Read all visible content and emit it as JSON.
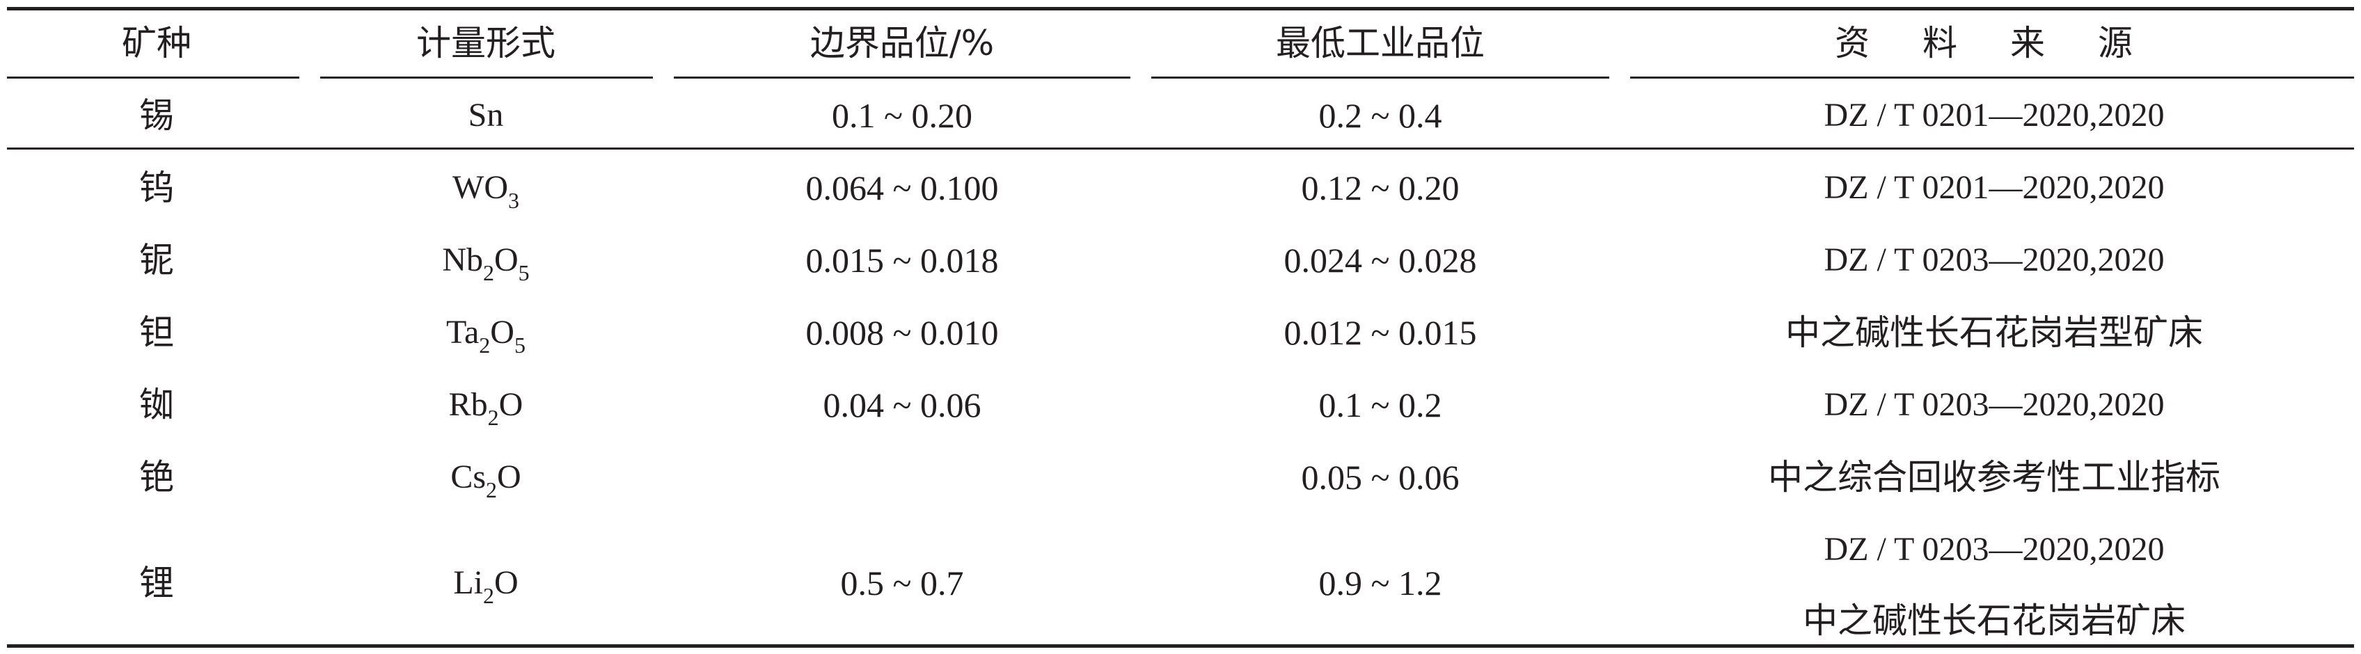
{
  "headers": {
    "mineral": "矿种",
    "form": "计量形式",
    "cutoff": "边界品位/%",
    "min_grade": "最低工业品位",
    "source": "资 料 来 源"
  },
  "rows": [
    {
      "mineral": "锡",
      "form": [
        {
          "t": "Sn"
        }
      ],
      "cutoff": "0.1 ~ 0.20",
      "min_grade": "0.2 ~ 0.4",
      "source": [
        "DZ / T 0201—2020,2020"
      ]
    },
    {
      "mineral": "钨",
      "form": [
        {
          "t": "WO"
        },
        {
          "sub": "3"
        }
      ],
      "cutoff": "0.064 ~ 0.100",
      "min_grade": "0.12 ~ 0.20",
      "source": [
        "DZ / T 0201—2020,2020"
      ]
    },
    {
      "mineral": "铌",
      "form": [
        {
          "t": "Nb"
        },
        {
          "sub": "2"
        },
        {
          "t": "O"
        },
        {
          "sub": "5"
        }
      ],
      "cutoff": "0.015 ~ 0.018",
      "min_grade": "0.024 ~ 0.028",
      "source": [
        "DZ / T 0203—2020,2020"
      ]
    },
    {
      "mineral": "钽",
      "form": [
        {
          "t": "Ta"
        },
        {
          "sub": "2"
        },
        {
          "t": "O"
        },
        {
          "sub": "5"
        }
      ],
      "cutoff": "0.008 ~ 0.010",
      "min_grade": "0.012 ~ 0.015",
      "source": [
        "中之碱性长石花岗岩型矿床"
      ]
    },
    {
      "mineral": "铷",
      "form": [
        {
          "t": "Rb"
        },
        {
          "sub": "2"
        },
        {
          "t": "O"
        }
      ],
      "cutoff": "0.04 ~ 0.06",
      "min_grade": "0.1 ~ 0.2",
      "source": [
        "DZ / T 0203—2020,2020"
      ]
    },
    {
      "mineral": "铯",
      "form": [
        {
          "t": "Cs"
        },
        {
          "sub": "2"
        },
        {
          "t": "O"
        }
      ],
      "cutoff": "",
      "min_grade": "0.05 ~ 0.06",
      "source": [
        "中之综合回收参考性工业指标"
      ]
    },
    {
      "mineral": "锂",
      "form": [
        {
          "t": "Li"
        },
        {
          "sub": "2"
        },
        {
          "t": "O"
        }
      ],
      "cutoff": "0.5 ~ 0.7",
      "min_grade": "0.9 ~ 1.2",
      "source": [
        "DZ / T 0203—2020,2020",
        "中之碱性长石花岗岩矿床"
      ]
    }
  ]
}
